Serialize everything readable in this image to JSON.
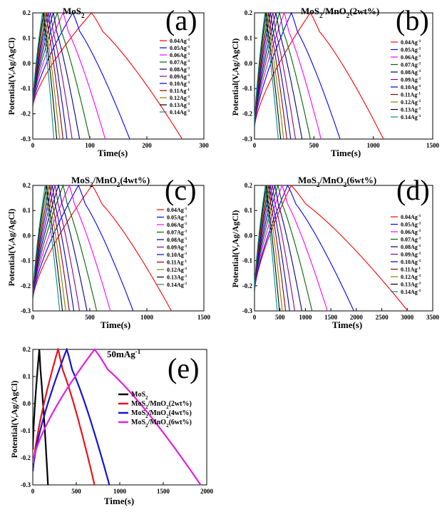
{
  "figure": {
    "xlabel": "Time(s)",
    "ylabel": "Potential(V,Ag/AgCl)"
  },
  "chart_data": [
    {
      "type": "line",
      "panel": "(a)",
      "title": "MoS",
      "title_sub": "2",
      "title_after": "",
      "xlabel": "Time(s)",
      "ylabel": "Potential(V,Ag/AgCl)",
      "xlim": [
        0,
        300
      ],
      "ylim": [
        -0.3,
        0.2
      ],
      "xticks": [
        0,
        100,
        200,
        300
      ],
      "yticks": [
        -0.3,
        -0.2,
        -0.1,
        0.0,
        0.1,
        0.2
      ],
      "legend_position": "right",
      "series": [
        {
          "name": "0.04Ag-1",
          "color": "#ff0000",
          "start": -0.17,
          "peak_time": 103,
          "end_time": 262
        },
        {
          "name": "0.05Ag-1",
          "color": "#0000ff",
          "start": -0.17,
          "peak_time": 70,
          "end_time": 170
        },
        {
          "name": "0.06Ag-1",
          "color": "#ff00ff",
          "start": -0.17,
          "peak_time": 53,
          "end_time": 127
        },
        {
          "name": "0.07Ag-1",
          "color": "#006400",
          "start": -0.17,
          "peak_time": 43,
          "end_time": 100
        },
        {
          "name": "0.08Ag-1",
          "color": "#000080",
          "start": -0.17,
          "peak_time": 36,
          "end_time": 82
        },
        {
          "name": "0.09Ag-1",
          "color": "#8b008b",
          "start": -0.17,
          "peak_time": 31,
          "end_time": 69
        },
        {
          "name": "0.10Ag-1",
          "color": "#0000cd",
          "start": -0.17,
          "peak_time": 27,
          "end_time": 60
        },
        {
          "name": "0.11Ag-1",
          "color": "#8b0000",
          "start": -0.17,
          "peak_time": 24,
          "end_time": 53
        },
        {
          "name": "0.12Ag-1",
          "color": "#808000",
          "start": -0.17,
          "peak_time": 21,
          "end_time": 47
        },
        {
          "name": "0.13Ag-1",
          "color": "#000000",
          "start": -0.17,
          "peak_time": 19,
          "end_time": 42
        },
        {
          "name": "0.14Ag-1",
          "color": "#008b8b",
          "start": -0.17,
          "peak_time": 17,
          "end_time": 37
        }
      ]
    },
    {
      "type": "line",
      "panel": "(b)",
      "title": "MoS",
      "title_sub": "2",
      "title_after": "/MnO",
      "title_sub2": "2",
      "title_tail": "(2wt%)",
      "xlabel": "Time(s)",
      "ylabel": "Potential(V,Ag/AgCl)",
      "xlim": [
        0,
        1500
      ],
      "ylim": [
        -0.3,
        0.2
      ],
      "xticks": [
        0,
        500,
        1000,
        1500
      ],
      "yticks": [
        -0.3,
        -0.2,
        -0.1,
        0.0,
        0.1,
        0.2
      ],
      "legend_position": "right",
      "series": [
        {
          "name": "0.04Ag-1",
          "color": "#ff0000",
          "start": -0.25,
          "peak_time": 470,
          "end_time": 1085
        },
        {
          "name": "0.05Ag-1",
          "color": "#0000ff",
          "start": -0.25,
          "peak_time": 310,
          "end_time": 720
        },
        {
          "name": "0.06Ag-1",
          "color": "#ff00ff",
          "start": -0.25,
          "peak_time": 250,
          "end_time": 560
        },
        {
          "name": "0.07Ag-1",
          "color": "#006400",
          "start": -0.25,
          "peak_time": 210,
          "end_time": 470
        },
        {
          "name": "0.08Ag-1",
          "color": "#000080",
          "start": -0.25,
          "peak_time": 180,
          "end_time": 400
        },
        {
          "name": "0.09Ag-1",
          "color": "#8b008b",
          "start": -0.25,
          "peak_time": 155,
          "end_time": 345
        },
        {
          "name": "0.10Ag-1",
          "color": "#0000cd",
          "start": -0.25,
          "peak_time": 135,
          "end_time": 305
        },
        {
          "name": "0.11Ag-1",
          "color": "#8b0000",
          "start": -0.25,
          "peak_time": 120,
          "end_time": 272
        },
        {
          "name": "0.12Ag-1",
          "color": "#808000",
          "start": -0.25,
          "peak_time": 108,
          "end_time": 245
        },
        {
          "name": "0.13Ag-1",
          "color": "#000000",
          "start": -0.25,
          "peak_time": 97,
          "end_time": 220
        },
        {
          "name": "0.14Ag-1",
          "color": "#008b8b",
          "start": -0.25,
          "peak_time": 88,
          "end_time": 200
        }
      ]
    },
    {
      "type": "line",
      "panel": "(c)",
      "title": "MoS",
      "title_sub": "2",
      "title_after": "/MnO",
      "title_sub2": "2",
      "title_tail": "(4wt%)",
      "xlabel": "Time(s)",
      "ylabel": "Potential(V,Ag/AgCl)",
      "xlim": [
        0,
        1500
      ],
      "ylim": [
        -0.3,
        0.2
      ],
      "xticks": [
        0,
        500,
        1000,
        1500
      ],
      "yticks": [
        -0.3,
        -0.2,
        -0.1,
        0.0,
        0.1,
        0.2
      ],
      "legend_position": "right",
      "series": [
        {
          "name": "0.04Ag-1",
          "color": "#ff0000",
          "start": -0.25,
          "peak_time": 520,
          "end_time": 1215
        },
        {
          "name": "0.05Ag-1",
          "color": "#0000ff",
          "start": -0.25,
          "peak_time": 400,
          "end_time": 880
        },
        {
          "name": "0.06Ag-1",
          "color": "#ff00ff",
          "start": -0.25,
          "peak_time": 320,
          "end_time": 680
        },
        {
          "name": "0.07Ag-1",
          "color": "#006400",
          "start": -0.25,
          "peak_time": 265,
          "end_time": 560
        },
        {
          "name": "0.08Ag-1",
          "color": "#000080",
          "start": -0.25,
          "peak_time": 225,
          "end_time": 475
        },
        {
          "name": "0.09Ag-1",
          "color": "#8b008b",
          "start": -0.25,
          "peak_time": 195,
          "end_time": 410
        },
        {
          "name": "0.10Ag-1",
          "color": "#0000cd",
          "start": -0.25,
          "peak_time": 170,
          "end_time": 360
        },
        {
          "name": "0.11Ag-1",
          "color": "#8b0000",
          "start": -0.25,
          "peak_time": 150,
          "end_time": 320
        },
        {
          "name": "0.12Ag-1",
          "color": "#808000",
          "start": -0.25,
          "peak_time": 134,
          "end_time": 288
        },
        {
          "name": "0.13Ag-1",
          "color": "#000000",
          "start": -0.25,
          "peak_time": 120,
          "end_time": 260
        },
        {
          "name": "0.14Ag-1",
          "color": "#008b8b",
          "start": -0.25,
          "peak_time": 108,
          "end_time": 236
        }
      ]
    },
    {
      "type": "line",
      "panel": "(d)",
      "title": "MoS",
      "title_sub": "2",
      "title_after": "/MnO",
      "title_sub2": "2",
      "title_tail": "(6wt%)",
      "xlabel": "Time(s)",
      "ylabel": "Potential(V,Ag/AgCl)",
      "xlim": [
        0,
        3500
      ],
      "ylim": [
        -0.3,
        0.2
      ],
      "xticks": [
        0,
        500,
        1000,
        1500,
        2000,
        2500,
        3000,
        3500
      ],
      "yticks": [
        -0.3,
        -0.2,
        -0.1,
        0.0,
        0.1,
        0.2
      ],
      "legend_position": "right",
      "series": [
        {
          "name": "0.04Ag-1",
          "color": "#ff0000",
          "start": -0.22,
          "peak_time": 720,
          "end_time": 3010
        },
        {
          "name": "0.05Ag-1",
          "color": "#0000ff",
          "start": -0.22,
          "peak_time": 650,
          "end_time": 1950
        },
        {
          "name": "0.06Ag-1",
          "color": "#ff00ff",
          "start": -0.22,
          "peak_time": 540,
          "end_time": 1430
        },
        {
          "name": "0.07Ag-1",
          "color": "#006400",
          "start": -0.22,
          "peak_time": 460,
          "end_time": 1130
        },
        {
          "name": "0.08Ag-1",
          "color": "#000080",
          "start": -0.22,
          "peak_time": 400,
          "end_time": 930
        },
        {
          "name": "0.09Ag-1",
          "color": "#8b008b",
          "start": -0.22,
          "peak_time": 350,
          "end_time": 790
        },
        {
          "name": "0.10Ag-1",
          "color": "#0000cd",
          "start": -0.22,
          "peak_time": 310,
          "end_time": 690
        },
        {
          "name": "0.11Ag-1",
          "color": "#8b0000",
          "start": -0.22,
          "peak_time": 280,
          "end_time": 610
        },
        {
          "name": "0.12Ag-1",
          "color": "#808000",
          "start": -0.22,
          "peak_time": 255,
          "end_time": 545
        },
        {
          "name": "0.13Ag-1",
          "color": "#000000",
          "start": -0.22,
          "peak_time": 232,
          "end_time": 490
        },
        {
          "name": "0.14Ag-1",
          "color": "#008b8b",
          "start": -0.22,
          "peak_time": 212,
          "end_time": 445
        }
      ]
    },
    {
      "type": "line",
      "panel": "(e)",
      "title": "50mAg",
      "title_sup": "-1",
      "xlabel": "Time(s)",
      "ylabel": "Potential(V,Ag/AgCl)",
      "xlim": [
        0,
        2000
      ],
      "ylim": [
        -0.3,
        0.2
      ],
      "xticks": [
        0,
        500,
        1000,
        1500,
        2000
      ],
      "yticks": [
        -0.3,
        -0.2,
        -0.1,
        0.0,
        0.1,
        0.2
      ],
      "legend_position": "right",
      "series": [
        {
          "name": "MoS2",
          "color": "#000000",
          "start": -0.17,
          "peak_time": 75,
          "end_time": 175
        },
        {
          "name": "MoS2/MnO2(2wt%)",
          "color": "#e8141e",
          "start": -0.25,
          "peak_time": 290,
          "end_time": 710
        },
        {
          "name": "MoS2/MnO2(4wt%)",
          "color": "#1414d2",
          "start": -0.25,
          "peak_time": 390,
          "end_time": 880
        },
        {
          "name": "MoS2/MnO2(6wt%)",
          "color": "#e61ee6",
          "start": -0.22,
          "peak_time": 710,
          "end_time": 1930
        }
      ]
    }
  ]
}
